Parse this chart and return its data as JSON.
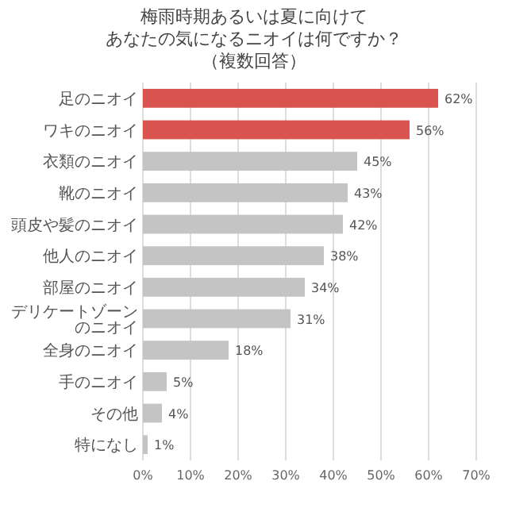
{
  "chart_data": {
    "type": "bar",
    "orientation": "horizontal",
    "title": "梅雨時期あるいは夏に向けてあなたの気になるニオイは何ですか？",
    "subtitle": "（複数回答）",
    "categories": [
      "足のニオイ",
      "ワキのニオイ",
      "衣類のニオイ",
      "靴のニオイ",
      "頭皮や髪のニオイ",
      "他人のニオイ",
      "部屋のニオイ",
      "デリケートゾーンのニオイ",
      "全身のニオイ",
      "手のニオイ",
      "その他",
      "特になし"
    ],
    "values": [
      62,
      56,
      45,
      43,
      42,
      38,
      34,
      31,
      18,
      5,
      4,
      1
    ],
    "value_labels": [
      "62%",
      "56%",
      "45%",
      "43%",
      "42%",
      "38%",
      "34%",
      "31%",
      "18%",
      "5%",
      "4%",
      "1%"
    ],
    "colors": [
      "#d9534f",
      "#d9534f",
      "#c4c4c4",
      "#c4c4c4",
      "#c4c4c4",
      "#c4c4c4",
      "#c4c4c4",
      "#c4c4c4",
      "#c4c4c4",
      "#c4c4c4",
      "#c4c4c4",
      "#c4c4c4"
    ],
    "xlim": [
      0,
      70
    ],
    "xticks": [
      {
        "value": 0,
        "label": "0%"
      },
      {
        "value": 10,
        "label": "10%"
      },
      {
        "value": 20,
        "label": "20%"
      },
      {
        "value": 30,
        "label": "30%"
      },
      {
        "value": 40,
        "label": "40%"
      },
      {
        "value": 50,
        "label": "50%"
      },
      {
        "value": 60,
        "label": "60%"
      },
      {
        "value": 70,
        "label": "70%"
      }
    ],
    "grid": "x"
  }
}
